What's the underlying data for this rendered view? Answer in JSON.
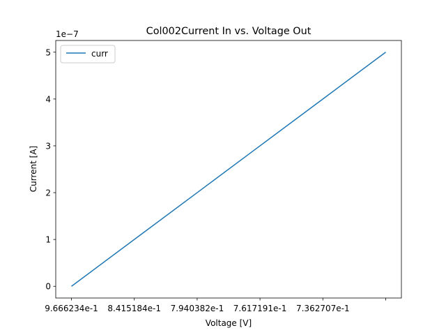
{
  "chart_data": {
    "type": "line",
    "title": "Col002Current In vs. Voltage Out",
    "xlabel": "Voltage [V]",
    "ylabel": "Current [A]",
    "y_offset_text": "1e−7",
    "x_tick_labels": [
      "9.666234e-1",
      "8.415184e-1",
      "7.940382e-1",
      "7.617191e-1",
      "7.362707e-1",
      ""
    ],
    "y_tick_labels": [
      "0",
      "1",
      "2",
      "3",
      "4",
      "5"
    ],
    "y_ticks": [
      0,
      1,
      2,
      3,
      4,
      5
    ],
    "ylim": [
      -0.25,
      5.25
    ],
    "x": [
      0,
      1,
      2,
      3,
      4,
      5
    ],
    "series": [
      {
        "name": "curr",
        "color": "#1f77b4",
        "values": [
          0.0,
          1.0,
          2.0,
          3.0,
          4.0,
          5.0
        ]
      }
    ],
    "legend_position": "upper left",
    "grid": false
  }
}
